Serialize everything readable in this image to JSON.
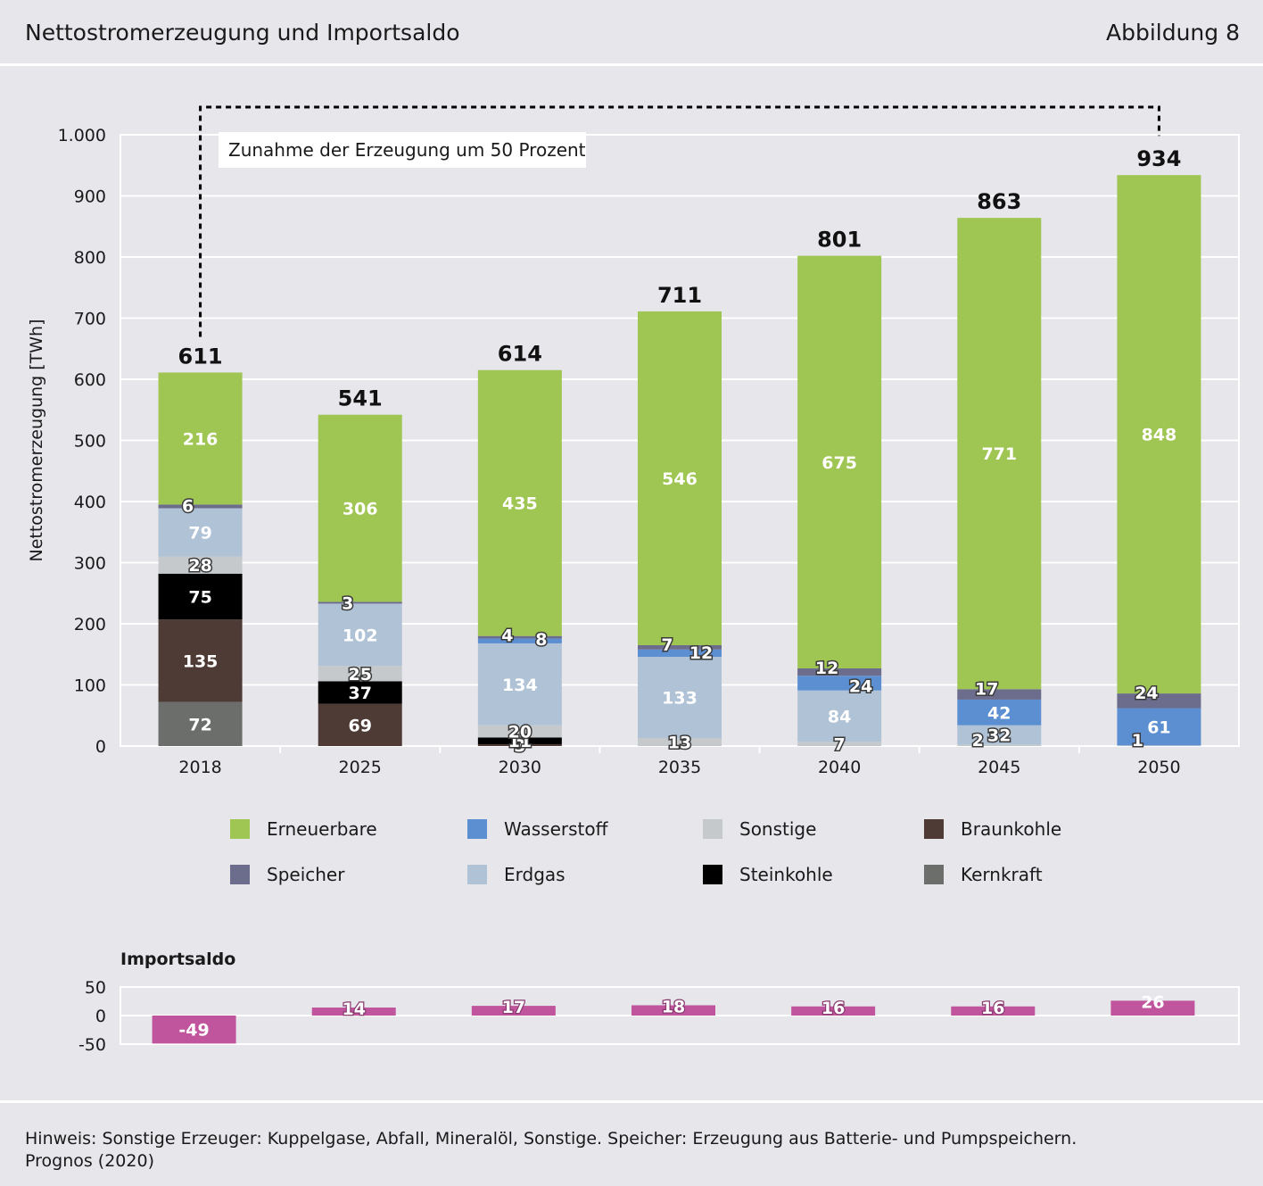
{
  "header": {
    "title": "Nettostromerzeugung und Importsaldo",
    "figure_number": "Abbildung 8"
  },
  "annotation": "Zunahme der Erzeugung um 50 Prozent",
  "footer": {
    "note": "Hinweis: Sonstige Erzeuger: Kuppelgase, Abfall, Mineralöl, Sonstige. Speicher: Erzeugung aus Batterie- und Pumpspeichern.",
    "source": "Prognos (2020)"
  },
  "colors": {
    "Erneuerbare": "#9fc552",
    "Speicher": "#6c6c8c",
    "Wasserstoff": "#5b8fd1",
    "Erdgas": "#b0c2d6",
    "Sonstige": "#c5c9cc",
    "Steinkohle": "#000000",
    "Braunkohle": "#4f3b35",
    "Kernkraft": "#6b6e6b",
    "Importsaldo": "#c0559e"
  },
  "chart_data": [
    {
      "type": "bar",
      "stacked": true,
      "categories": [
        "2018",
        "2025",
        "2030",
        "2035",
        "2040",
        "2045",
        "2050"
      ],
      "ylabel": "Nettostromerzeugung [TWh]",
      "ylim": [
        0,
        1000
      ],
      "yticks": [
        0,
        100,
        200,
        300,
        400,
        500,
        600,
        700,
        800,
        900,
        1000
      ],
      "ytick_labels": [
        "0",
        "100",
        "200",
        "300",
        "400",
        "500",
        "600",
        "700",
        "800",
        "900",
        "1.000"
      ],
      "grid": true,
      "legend_position": "bottom",
      "legend": [
        "Erneuerbare",
        "Wasserstoff",
        "Sonstige",
        "Braunkohle",
        "Speicher",
        "Erdgas",
        "Steinkohle",
        "Kernkraft"
      ],
      "series": [
        {
          "name": "Kernkraft",
          "values": [
            72,
            0,
            0,
            0,
            0,
            0,
            0
          ]
        },
        {
          "name": "Braunkohle",
          "values": [
            135,
            69,
            3,
            0,
            0,
            0,
            0
          ]
        },
        {
          "name": "Steinkohle",
          "values": [
            75,
            37,
            11,
            0,
            0,
            0,
            0
          ]
        },
        {
          "name": "Sonstige",
          "values": [
            28,
            25,
            20,
            13,
            7,
            2,
            1
          ]
        },
        {
          "name": "Erdgas",
          "values": [
            79,
            102,
            134,
            133,
            84,
            32,
            0
          ]
        },
        {
          "name": "Wasserstoff",
          "values": [
            0,
            0,
            8,
            12,
            24,
            42,
            61
          ]
        },
        {
          "name": "Speicher",
          "values": [
            6,
            3,
            4,
            7,
            12,
            17,
            24
          ]
        },
        {
          "name": "Erneuerbare",
          "values": [
            216,
            306,
            435,
            546,
            675,
            771,
            848
          ]
        }
      ],
      "totals": [
        611,
        541,
        614,
        711,
        801,
        863,
        934
      ]
    },
    {
      "type": "bar",
      "title": "Importsaldo",
      "categories": [
        "2018",
        "2025",
        "2030",
        "2035",
        "2040",
        "2045",
        "2050"
      ],
      "ylim": [
        -50,
        50
      ],
      "yticks": [
        -50,
        0,
        50
      ],
      "ytick_labels": [
        "-50",
        "0",
        "50"
      ],
      "values": [
        -49,
        14,
        17,
        18,
        16,
        16,
        26
      ]
    }
  ]
}
